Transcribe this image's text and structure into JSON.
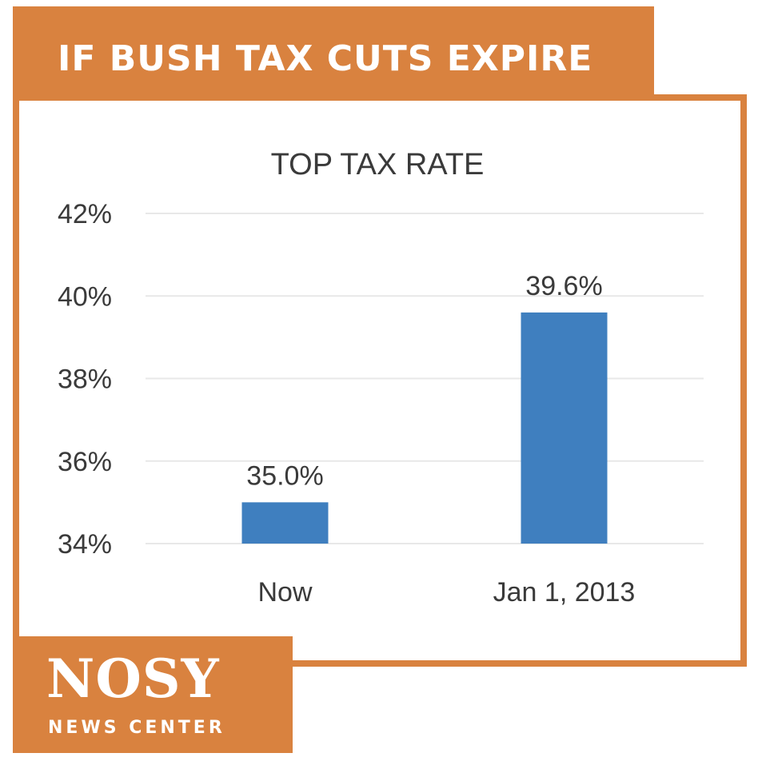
{
  "header": {
    "title": "IF BUSH TAX CUTS EXPIRE"
  },
  "branding": {
    "logo_main": "NOSY",
    "logo_sub": "NEWS CENTER"
  },
  "colors": {
    "accent": "#d9823f",
    "bar": "#3f7fbf",
    "gridline": "#e8e8e8"
  },
  "chart_data": {
    "type": "bar",
    "title": "TOP TAX RATE",
    "categories": [
      "Now",
      "Jan 1, 2013"
    ],
    "values": [
      35.0,
      39.6
    ],
    "value_labels": [
      "35.0%",
      "39.6%"
    ],
    "ylim": [
      34,
      42
    ],
    "yticks": [
      34,
      36,
      38,
      40,
      42
    ],
    "ytick_labels": [
      "34%",
      "36%",
      "38%",
      "40%",
      "42%"
    ],
    "xlabel": "",
    "ylabel": "",
    "grid": true,
    "legend": "none"
  }
}
